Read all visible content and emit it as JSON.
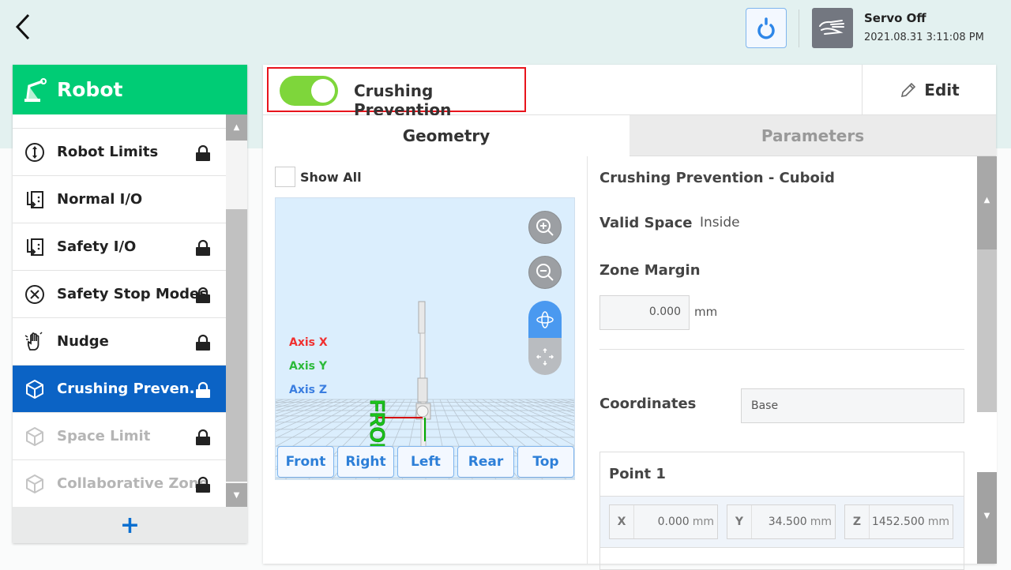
{
  "header": {
    "servo_status": "Servo Off",
    "datetime": "2021.08.31 3:11:08 PM"
  },
  "sidebar": {
    "title": "Robot",
    "items": [
      {
        "label": "Robot Limits",
        "icon": "robot-limits-icon",
        "locked": true,
        "state": "normal"
      },
      {
        "label": "Normal I/O",
        "icon": "io-icon",
        "locked": false,
        "state": "normal"
      },
      {
        "label": "Safety I/O",
        "icon": "io-icon",
        "locked": true,
        "state": "normal"
      },
      {
        "label": "Safety Stop Modes",
        "icon": "stop-circle-icon",
        "locked": true,
        "state": "normal"
      },
      {
        "label": "Nudge",
        "icon": "hand-icon",
        "locked": true,
        "state": "normal"
      },
      {
        "label": "Crushing Preven...",
        "icon": "cube-icon",
        "locked": true,
        "state": "active"
      },
      {
        "label": "Space Limit",
        "icon": "cube-icon",
        "locked": true,
        "state": "disabled"
      },
      {
        "label": "Collaborative Zone",
        "icon": "cube-icon",
        "locked": true,
        "state": "disabled"
      }
    ],
    "add_label": "+"
  },
  "main": {
    "toggle_label": "Crushing Prevention",
    "toggle_on": true,
    "edit_label": "Edit",
    "tabs": [
      {
        "label": "Geometry",
        "active": true
      },
      {
        "label": "Parameters",
        "active": false
      }
    ],
    "show_all_label": "Show All",
    "show_all_checked": false,
    "viewer": {
      "axis_x": "Axis X",
      "axis_y": "Axis Y",
      "axis_z": "Axis Z",
      "front_text": "FRONT",
      "view_buttons": [
        "Front",
        "Right",
        "Left",
        "Rear",
        "Top"
      ]
    },
    "details": {
      "title": "Crushing Prevention - Cuboid",
      "valid_space_label": "Valid Space",
      "valid_space_value": "Inside",
      "zone_margin_label": "Zone Margin",
      "zone_margin_value": "0.000",
      "zone_margin_unit": "mm",
      "coordinates_label": "Coordinates",
      "coordinates_value": "Base",
      "point1": {
        "title": "Point 1",
        "x_label": "X",
        "x": "0.000",
        "y_label": "Y",
        "y": "34.500",
        "z_label": "Z",
        "z": "1452.500",
        "unit": "mm"
      }
    }
  },
  "colors": {
    "accent_green": "#00cc75",
    "active_blue": "#0b63c5",
    "toggle_green": "#7ed63b",
    "highlight_red": "#e8141c"
  }
}
